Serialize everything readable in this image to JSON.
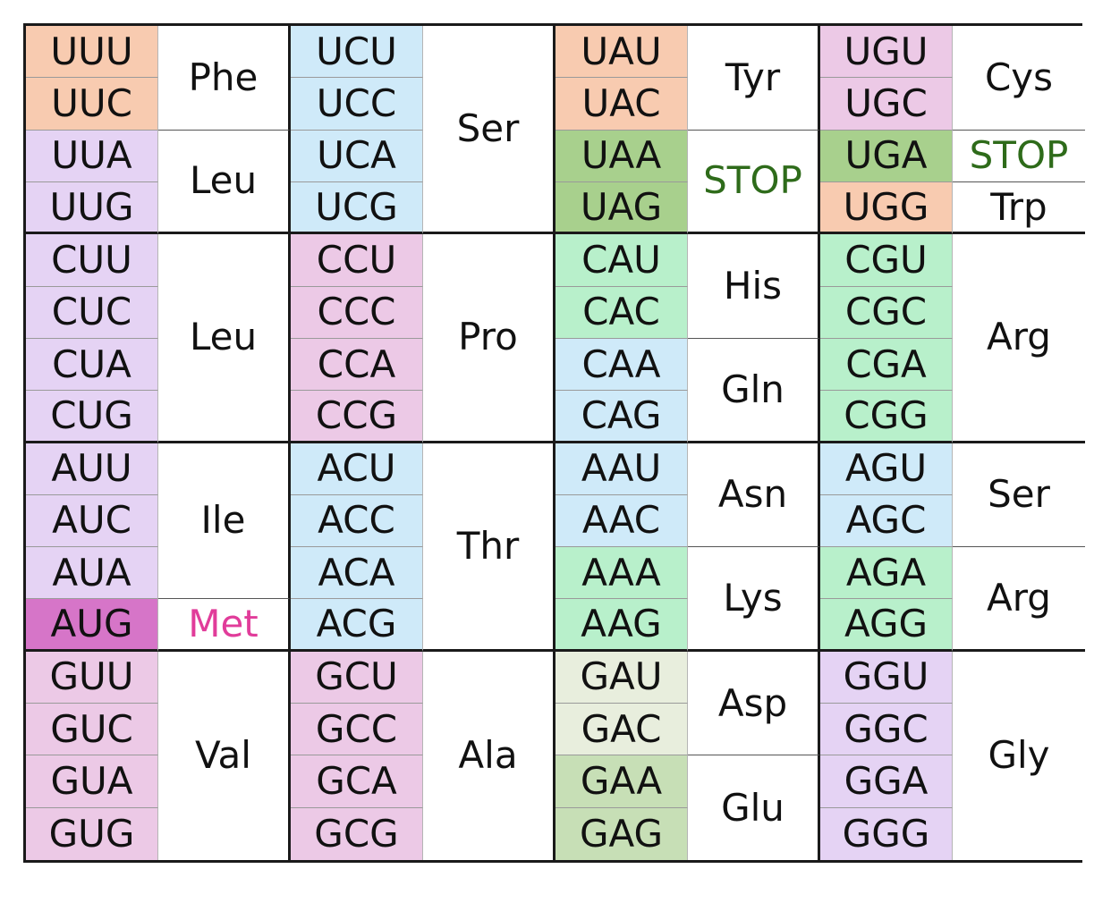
{
  "colors": {
    "orange": "#f8cbb0",
    "lilac": "#e5d3f4",
    "blue": "#cfeaf9",
    "pink": "#ecc9e6",
    "green_dark": "#a8d08d",
    "mint": "#b8f0cb",
    "met": "#d675c8",
    "pale": "#e8eedd",
    "glu": "#c7dfb6",
    "stop_text": "#2e6b1a",
    "met_text": "#e13c9a"
  },
  "codons": [
    {
      "text": "UUU",
      "col": 1,
      "row": 1,
      "color": "orange"
    },
    {
      "text": "UUC",
      "col": 1,
      "row": 2,
      "color": "orange"
    },
    {
      "text": "UUA",
      "col": 1,
      "row": 3,
      "color": "lilac"
    },
    {
      "text": "UUG",
      "col": 1,
      "row": 4,
      "color": "lilac"
    },
    {
      "text": "CUU",
      "col": 1,
      "row": 5,
      "color": "lilac"
    },
    {
      "text": "CUC",
      "col": 1,
      "row": 6,
      "color": "lilac"
    },
    {
      "text": "CUA",
      "col": 1,
      "row": 7,
      "color": "lilac"
    },
    {
      "text": "CUG",
      "col": 1,
      "row": 8,
      "color": "lilac"
    },
    {
      "text": "AUU",
      "col": 1,
      "row": 9,
      "color": "lilac"
    },
    {
      "text": "AUC",
      "col": 1,
      "row": 10,
      "color": "lilac"
    },
    {
      "text": "AUA",
      "col": 1,
      "row": 11,
      "color": "lilac"
    },
    {
      "text": "AUG",
      "col": 1,
      "row": 12,
      "color": "met"
    },
    {
      "text": "GUU",
      "col": 1,
      "row": 13,
      "color": "pink"
    },
    {
      "text": "GUC",
      "col": 1,
      "row": 14,
      "color": "pink"
    },
    {
      "text": "GUA",
      "col": 1,
      "row": 15,
      "color": "pink"
    },
    {
      "text": "GUG",
      "col": 1,
      "row": 16,
      "color": "pink"
    },
    {
      "text": "UCU",
      "col": 3,
      "row": 1,
      "color": "blue"
    },
    {
      "text": "UCC",
      "col": 3,
      "row": 2,
      "color": "blue"
    },
    {
      "text": "UCA",
      "col": 3,
      "row": 3,
      "color": "blue"
    },
    {
      "text": "UCG",
      "col": 3,
      "row": 4,
      "color": "blue"
    },
    {
      "text": "CCU",
      "col": 3,
      "row": 5,
      "color": "pink"
    },
    {
      "text": "CCC",
      "col": 3,
      "row": 6,
      "color": "pink"
    },
    {
      "text": "CCA",
      "col": 3,
      "row": 7,
      "color": "pink"
    },
    {
      "text": "CCG",
      "col": 3,
      "row": 8,
      "color": "pink"
    },
    {
      "text": "ACU",
      "col": 3,
      "row": 9,
      "color": "blue"
    },
    {
      "text": "ACC",
      "col": 3,
      "row": 10,
      "color": "blue"
    },
    {
      "text": "ACA",
      "col": 3,
      "row": 11,
      "color": "blue"
    },
    {
      "text": "ACG",
      "col": 3,
      "row": 12,
      "color": "blue"
    },
    {
      "text": "GCU",
      "col": 3,
      "row": 13,
      "color": "pink"
    },
    {
      "text": "GCC",
      "col": 3,
      "row": 14,
      "color": "pink"
    },
    {
      "text": "GCA",
      "col": 3,
      "row": 15,
      "color": "pink"
    },
    {
      "text": "GCG",
      "col": 3,
      "row": 16,
      "color": "pink"
    },
    {
      "text": "UAU",
      "col": 5,
      "row": 1,
      "color": "orange"
    },
    {
      "text": "UAC",
      "col": 5,
      "row": 2,
      "color": "orange"
    },
    {
      "text": "UAA",
      "col": 5,
      "row": 3,
      "color": "green_dark"
    },
    {
      "text": "UAG",
      "col": 5,
      "row": 4,
      "color": "green_dark"
    },
    {
      "text": "CAU",
      "col": 5,
      "row": 5,
      "color": "mint"
    },
    {
      "text": "CAC",
      "col": 5,
      "row": 6,
      "color": "mint"
    },
    {
      "text": "CAA",
      "col": 5,
      "row": 7,
      "color": "blue"
    },
    {
      "text": "CAG",
      "col": 5,
      "row": 8,
      "color": "blue"
    },
    {
      "text": "AAU",
      "col": 5,
      "row": 9,
      "color": "blue"
    },
    {
      "text": "AAC",
      "col": 5,
      "row": 10,
      "color": "blue"
    },
    {
      "text": "AAA",
      "col": 5,
      "row": 11,
      "color": "mint"
    },
    {
      "text": "AAG",
      "col": 5,
      "row": 12,
      "color": "mint"
    },
    {
      "text": "GAU",
      "col": 5,
      "row": 13,
      "color": "pale"
    },
    {
      "text": "GAC",
      "col": 5,
      "row": 14,
      "color": "pale"
    },
    {
      "text": "GAA",
      "col": 5,
      "row": 15,
      "color": "glu"
    },
    {
      "text": "GAG",
      "col": 5,
      "row": 16,
      "color": "glu"
    },
    {
      "text": "UGU",
      "col": 7,
      "row": 1,
      "color": "pink"
    },
    {
      "text": "UGC",
      "col": 7,
      "row": 2,
      "color": "pink"
    },
    {
      "text": "UGA",
      "col": 7,
      "row": 3,
      "color": "green_dark"
    },
    {
      "text": "UGG",
      "col": 7,
      "row": 4,
      "color": "orange"
    },
    {
      "text": "CGU",
      "col": 7,
      "row": 5,
      "color": "mint"
    },
    {
      "text": "CGC",
      "col": 7,
      "row": 6,
      "color": "mint"
    },
    {
      "text": "CGA",
      "col": 7,
      "row": 7,
      "color": "mint"
    },
    {
      "text": "CGG",
      "col": 7,
      "row": 8,
      "color": "mint"
    },
    {
      "text": "AGU",
      "col": 7,
      "row": 9,
      "color": "blue"
    },
    {
      "text": "AGC",
      "col": 7,
      "row": 10,
      "color": "blue"
    },
    {
      "text": "AGA",
      "col": 7,
      "row": 11,
      "color": "mint"
    },
    {
      "text": "AGG",
      "col": 7,
      "row": 12,
      "color": "mint"
    },
    {
      "text": "GGU",
      "col": 7,
      "row": 13,
      "color": "lilac"
    },
    {
      "text": "GGC",
      "col": 7,
      "row": 14,
      "color": "lilac"
    },
    {
      "text": "GGA",
      "col": 7,
      "row": 15,
      "color": "lilac"
    },
    {
      "text": "GGG",
      "col": 7,
      "row": 16,
      "color": "lilac"
    }
  ],
  "amino_acids": [
    {
      "text": "Phe",
      "col": 2,
      "row": 1,
      "span": 2
    },
    {
      "text": "Leu",
      "col": 2,
      "row": 3,
      "span": 2
    },
    {
      "text": "Leu",
      "col": 2,
      "row": 5,
      "span": 4
    },
    {
      "text": "Ile",
      "col": 2,
      "row": 9,
      "span": 3
    },
    {
      "text": "Met",
      "col": 2,
      "row": 12,
      "span": 1,
      "textColor": "met_text"
    },
    {
      "text": "Val",
      "col": 2,
      "row": 13,
      "span": 4
    },
    {
      "text": "Ser",
      "col": 4,
      "row": 1,
      "span": 4
    },
    {
      "text": "Pro",
      "col": 4,
      "row": 5,
      "span": 4
    },
    {
      "text": "Thr",
      "col": 4,
      "row": 9,
      "span": 4
    },
    {
      "text": "Ala",
      "col": 4,
      "row": 13,
      "span": 4
    },
    {
      "text": "Tyr",
      "col": 6,
      "row": 1,
      "span": 2
    },
    {
      "text": "STOP",
      "col": 6,
      "row": 3,
      "span": 2,
      "textColor": "stop_text"
    },
    {
      "text": "His",
      "col": 6,
      "row": 5,
      "span": 2
    },
    {
      "text": "Gln",
      "col": 6,
      "row": 7,
      "span": 2
    },
    {
      "text": "Asn",
      "col": 6,
      "row": 9,
      "span": 2
    },
    {
      "text": "Lys",
      "col": 6,
      "row": 11,
      "span": 2
    },
    {
      "text": "Asp",
      "col": 6,
      "row": 13,
      "span": 2
    },
    {
      "text": "Glu",
      "col": 6,
      "row": 15,
      "span": 2
    },
    {
      "text": "Cys",
      "col": 8,
      "row": 1,
      "span": 2
    },
    {
      "text": "STOP",
      "col": 8,
      "row": 3,
      "span": 1,
      "textColor": "stop_text"
    },
    {
      "text": "Trp",
      "col": 8,
      "row": 4,
      "span": 1
    },
    {
      "text": "Arg",
      "col": 8,
      "row": 5,
      "span": 4
    },
    {
      "text": "Ser",
      "col": 8,
      "row": 9,
      "span": 2
    },
    {
      "text": "Arg",
      "col": 8,
      "row": 11,
      "span": 2
    },
    {
      "text": "Gly",
      "col": 8,
      "row": 13,
      "span": 4
    }
  ]
}
